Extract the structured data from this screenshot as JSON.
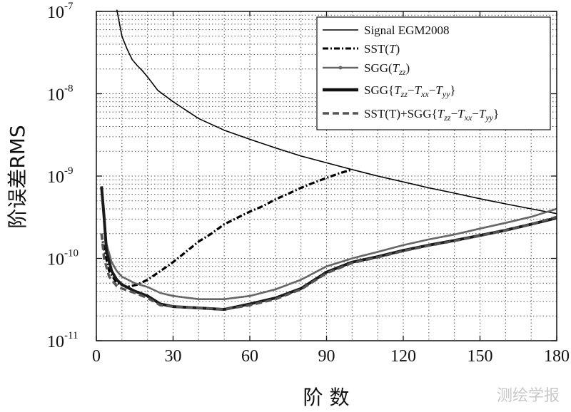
{
  "chart_data": {
    "type": "line",
    "xlabel": "阶 数",
    "ylabel": "阶误差RMS",
    "xlim": [
      0,
      180
    ],
    "ylim": [
      1e-11,
      1e-07
    ],
    "yscale": "log",
    "grid": true,
    "legend_position": "top-right",
    "x_ticks": [
      "0",
      "30",
      "60",
      "90",
      "120",
      "150",
      "180"
    ],
    "y_ticks": [
      {
        "base": "10",
        "exp": "-11"
      },
      {
        "base": "10",
        "exp": "-10"
      },
      {
        "base": "10",
        "exp": "-9"
      },
      {
        "base": "10",
        "exp": "-8"
      },
      {
        "base": "10",
        "exp": "-7"
      }
    ],
    "legend": [
      {
        "label": "Signal EGM2008"
      },
      {
        "label": "SST(T)"
      },
      {
        "label": "SGG(Tzz)"
      },
      {
        "label": "SGG{Tzz−Txx−Tyy}"
      },
      {
        "label": "SST(T)+SGG{Tzz−Txx−Tyy}"
      }
    ],
    "series": [
      {
        "name": "Signal EGM2008",
        "color": "#000000",
        "x": [
          8,
          10,
          12,
          14,
          16,
          18,
          20,
          24,
          30,
          40,
          50,
          60,
          70,
          80,
          90,
          100,
          110,
          120,
          130,
          140,
          150,
          160,
          170,
          180
        ],
        "y": [
          1.05e-07,
          5e-08,
          3.5e-08,
          2.6e-08,
          2.2e-08,
          1.9e-08,
          1.6e-08,
          1.1e-08,
          8e-09,
          5e-09,
          3.6e-09,
          2.8e-09,
          2.2e-09,
          1.75e-09,
          1.45e-09,
          1.2e-09,
          1e-09,
          8.5e-10,
          7.2e-10,
          6.2e-10,
          5.3e-10,
          4.6e-10,
          4e-10,
          3.5e-10
        ]
      },
      {
        "name": "SST(T)",
        "color": "#000000",
        "x": [
          2,
          3,
          5,
          8,
          12,
          16,
          20,
          25,
          30,
          35,
          40,
          45,
          50,
          55,
          60,
          65,
          70,
          75,
          80,
          85,
          90,
          95,
          100
        ],
        "y": [
          2e-10,
          1.3e-10,
          7e-11,
          5e-11,
          4.5e-11,
          4.8e-11,
          5.5e-11,
          7e-11,
          9e-11,
          1.2e-10,
          1.6e-10,
          2e-10,
          2.6e-10,
          3.1e-10,
          3.7e-10,
          4.3e-10,
          5.2e-10,
          6.1e-10,
          7.2e-10,
          8.3e-10,
          9.5e-10,
          1.08e-09,
          1.2e-09
        ]
      },
      {
        "name": "SGG(Tzz)",
        "color": "#666666",
        "x": [
          2,
          3,
          4,
          6,
          8,
          10,
          15,
          20,
          25,
          30,
          40,
          50,
          60,
          70,
          80,
          90,
          100,
          110,
          120,
          130,
          140,
          150,
          160,
          170,
          180
        ],
        "y": [
          7e-10,
          3e-10,
          1.5e-10,
          9e-11,
          7e-11,
          6e-11,
          5e-11,
          4.5e-11,
          3.8e-11,
          3.5e-11,
          3.2e-11,
          3.2e-11,
          3.5e-11,
          4.2e-11,
          5.5e-11,
          8e-11,
          1e-10,
          1.2e-10,
          1.45e-10,
          1.7e-10,
          1.95e-10,
          2.3e-10,
          2.7e-10,
          3.2e-10,
          4e-10
        ]
      },
      {
        "name": "SGG{Tzz−Txx−Tyy}",
        "color": "#1a1a1a",
        "x": [
          2,
          3,
          4,
          6,
          8,
          10,
          15,
          20,
          25,
          30,
          40,
          50,
          60,
          70,
          80,
          90,
          100,
          110,
          120,
          130,
          140,
          150,
          160,
          170,
          180
        ],
        "y": [
          7.5e-10,
          3.2e-10,
          1.2e-10,
          7e-11,
          5.5e-11,
          4.8e-11,
          4e-11,
          3.5e-11,
          2.8e-11,
          2.6e-11,
          2.5e-11,
          2.4e-11,
          2.8e-11,
          3.3e-11,
          4.3e-11,
          6.8e-11,
          9e-11,
          1.05e-10,
          1.25e-10,
          1.45e-10,
          1.65e-10,
          1.9e-10,
          2.2e-10,
          2.6e-10,
          3.1e-10
        ]
      },
      {
        "name": "SST(T)+SGG{Tzz−Txx−Tyy}",
        "color": "#555555",
        "x": [
          2,
          3,
          5,
          8,
          10,
          15,
          20,
          25,
          30,
          40,
          50,
          60,
          70,
          80,
          90,
          100,
          110,
          120,
          130,
          140,
          150,
          160,
          170,
          180
        ],
        "y": [
          2e-10,
          1e-10,
          6e-11,
          4.6e-11,
          4.3e-11,
          3.8e-11,
          3.3e-11,
          2.7e-11,
          2.6e-11,
          2.5e-11,
          2.4e-11,
          2.7e-11,
          3.2e-11,
          4.2e-11,
          6.6e-11,
          8.8e-11,
          1.03e-10,
          1.23e-10,
          1.43e-10,
          1.63e-10,
          1.88e-10,
          2.2e-10,
          2.6e-10,
          3.2e-10
        ]
      }
    ]
  },
  "watermark": "测绘学报"
}
